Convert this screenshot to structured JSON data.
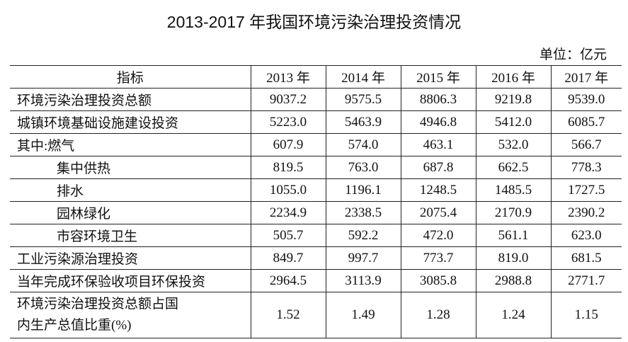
{
  "header": {
    "title": "2013-2017 年我国环境污染治理投资情况",
    "unit": "单位：亿元"
  },
  "table": {
    "columns": [
      "指标",
      "2013 年",
      "2014 年",
      "2015 年",
      "2016 年",
      "2017 年"
    ],
    "rows": [
      [
        [
          "环境污染治理投资总额"
        ],
        "9037.2",
        "9575.5",
        "8806.3",
        "9219.8",
        "9539.0"
      ],
      [
        [
          "城镇环境基础设施建设投资"
        ],
        "5223.0",
        "5463.9",
        "4946.8",
        "5412.0",
        "6085.7"
      ],
      [
        [
          "其中:燃气"
        ],
        "607.9",
        "574.0",
        "463.1",
        "532.0",
        "566.7"
      ],
      [
        [
          "集中供热"
        ],
        "819.5",
        "763.0",
        "687.8",
        "662.5",
        "778.3"
      ],
      [
        [
          "排水"
        ],
        "1055.0",
        "1196.1",
        "1248.5",
        "1485.5",
        "1727.5"
      ],
      [
        [
          "园林绿化"
        ],
        "2234.9",
        "2338.5",
        "2075.4",
        "2170.9",
        "2390.2"
      ],
      [
        [
          "市容环境卫生"
        ],
        "505.7",
        "592.2",
        "472.0",
        "561.1",
        "623.0"
      ],
      [
        [
          "工业污染源治理投资"
        ],
        "849.7",
        "997.7",
        "773.7",
        "819.0",
        "681.5"
      ],
      [
        [
          "当年完成环保验收项目环保投资"
        ],
        "2964.5",
        "3113.9",
        "3085.8",
        "2988.8",
        "2771.7"
      ],
      [
        [
          "环境污染治理投资总额占国",
          "内生产总值比重(%)"
        ],
        "1.52",
        "1.49",
        "1.28",
        "1.24",
        "1.15"
      ]
    ]
  }
}
